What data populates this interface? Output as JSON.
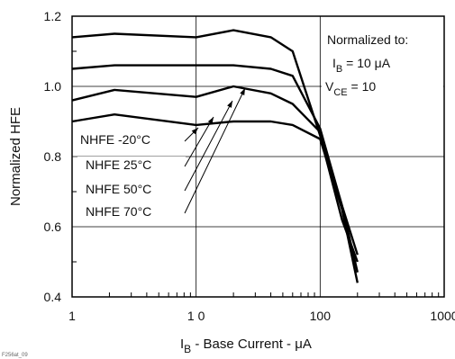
{
  "chart_data": {
    "type": "line",
    "xscale": "log",
    "xlim": [
      1,
      1000
    ],
    "ylim": [
      0.4,
      1.2
    ],
    "x_tick_labels": [
      "1",
      "1 0",
      "100",
      "1000"
    ],
    "y_tick_labels": [
      "0.4",
      "0.6",
      "0.8",
      "1.0",
      "1.2"
    ],
    "xlabel_main": "I",
    "xlabel_sub": "B",
    "xlabel_rest": " - Base Current - μA",
    "ylabel": "Normalized HFE",
    "grid": true,
    "note_line1": "Normalized to:",
    "note_line2_main": "I",
    "note_line2_sub": "B",
    "note_line2_rest": " = 10 μA",
    "note_line3_main": "V",
    "note_line3_sub": "CE",
    "note_line3_rest": " = 10",
    "figure_code": "F256at_09",
    "series": [
      {
        "name": "NHFE -20°C",
        "points": [
          [
            1,
            1.14
          ],
          [
            2.2,
            1.15
          ],
          [
            10,
            1.14
          ],
          [
            20,
            1.16
          ],
          [
            40,
            1.14
          ],
          [
            60,
            1.1
          ],
          [
            100,
            0.86
          ],
          [
            150,
            0.62
          ],
          [
            200,
            0.5
          ]
        ]
      },
      {
        "name": "NHFE 25°C",
        "points": [
          [
            1,
            1.05
          ],
          [
            2.2,
            1.06
          ],
          [
            10,
            1.06
          ],
          [
            20,
            1.06
          ],
          [
            40,
            1.05
          ],
          [
            60,
            1.03
          ],
          [
            100,
            0.88
          ],
          [
            150,
            0.66
          ],
          [
            200,
            0.52
          ]
        ]
      },
      {
        "name": "NHFE 50°C",
        "points": [
          [
            1,
            0.96
          ],
          [
            2.2,
            0.99
          ],
          [
            10,
            0.97
          ],
          [
            20,
            1.0
          ],
          [
            40,
            0.98
          ],
          [
            60,
            0.95
          ],
          [
            100,
            0.87
          ],
          [
            150,
            0.66
          ],
          [
            200,
            0.47
          ]
        ]
      },
      {
        "name": "NHFE 70°C",
        "points": [
          [
            1,
            0.9
          ],
          [
            2.2,
            0.92
          ],
          [
            10,
            0.89
          ],
          [
            20,
            0.9
          ],
          [
            40,
            0.9
          ],
          [
            60,
            0.89
          ],
          [
            100,
            0.85
          ],
          [
            150,
            0.65
          ],
          [
            200,
            0.44
          ]
        ]
      }
    ]
  }
}
